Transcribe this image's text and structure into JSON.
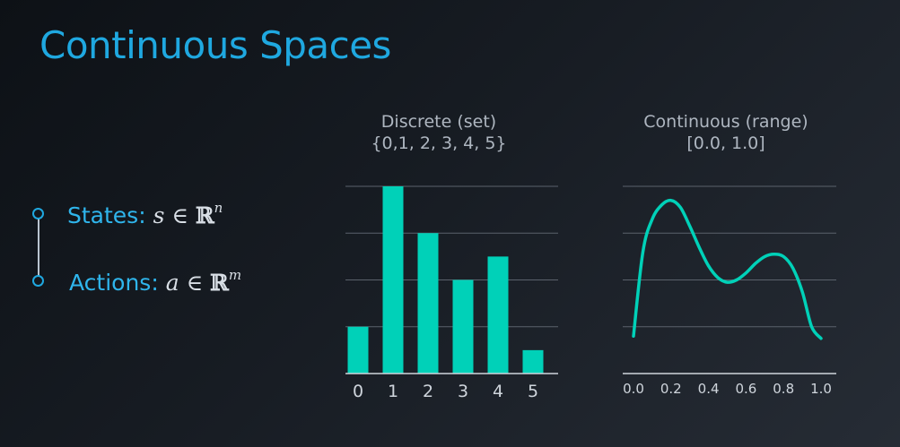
{
  "title": "Continuous Spaces",
  "bullets": [
    {
      "label": "States:",
      "var": "s",
      "op": "∈",
      "set": "ℝ",
      "exp": "n"
    },
    {
      "label": "Actions:",
      "var": "a",
      "op": "∈",
      "set": "ℝ",
      "exp": "m"
    }
  ],
  "colors": {
    "accent": "#1fa8e0",
    "teal": "#00d1b8",
    "grid": "#5b626c",
    "axis": "#cfd5dc",
    "text_muted": "#aeb6c0"
  },
  "chart_data": [
    {
      "type": "bar",
      "title": "Discrete (set)",
      "subtitle": "{0,1, 2, 3, 4, 5}",
      "categories": [
        "0",
        "1",
        "2",
        "3",
        "4",
        "5"
      ],
      "values": [
        1,
        4,
        3,
        2,
        2.5,
        0.5
      ],
      "ylim": [
        0,
        4
      ],
      "grid": true,
      "xlabel": "",
      "ylabel": ""
    },
    {
      "type": "line",
      "title": "Continuous (range)",
      "subtitle": "[0.0, 1.0]",
      "x": [
        0.0,
        0.05,
        0.1,
        0.15,
        0.2,
        0.25,
        0.3,
        0.35,
        0.4,
        0.45,
        0.5,
        0.55,
        0.6,
        0.65,
        0.7,
        0.75,
        0.8,
        0.85,
        0.9,
        0.95,
        1.0
      ],
      "y": [
        0.8,
        2.6,
        3.3,
        3.6,
        3.7,
        3.55,
        3.15,
        2.7,
        2.3,
        2.05,
        1.95,
        2.0,
        2.15,
        2.35,
        2.5,
        2.55,
        2.5,
        2.25,
        1.75,
        1.0,
        0.75
      ],
      "xticks": [
        "0.0",
        "0.2",
        "0.4",
        "0.6",
        "0.8",
        "1.0"
      ],
      "xlim": [
        0,
        1
      ],
      "ylim": [
        0,
        4
      ],
      "grid": true,
      "xlabel": "",
      "ylabel": ""
    }
  ]
}
